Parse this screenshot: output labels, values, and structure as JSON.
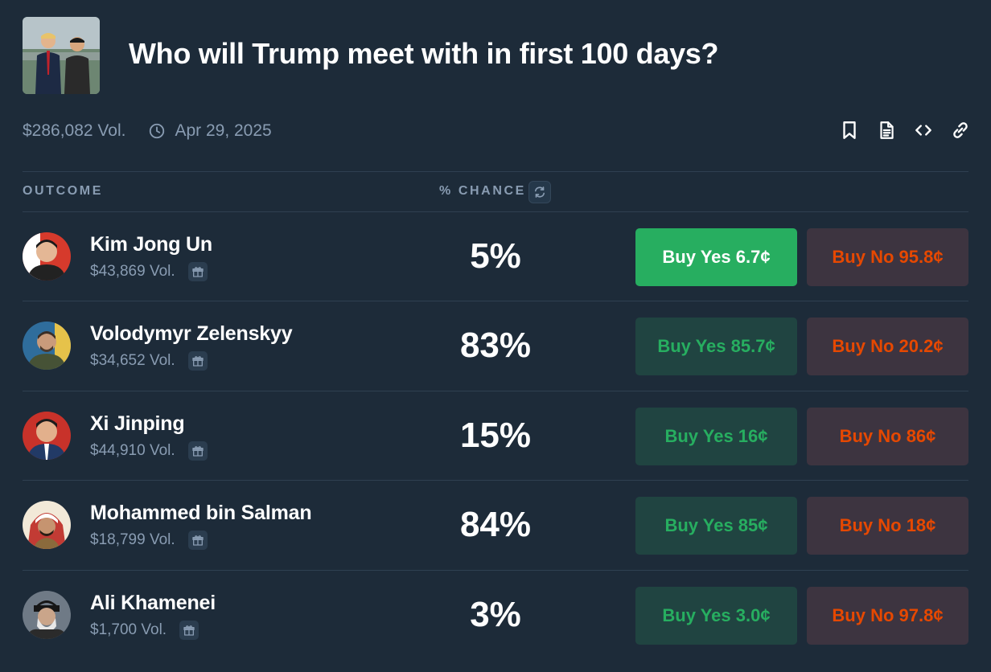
{
  "market": {
    "title": "Who will Trump meet with in first 100 days?",
    "volume": "$286,082 Vol.",
    "end_date": "Apr 29, 2025"
  },
  "actions": [
    "bookmark-icon",
    "document-icon",
    "code-icon",
    "link-icon"
  ],
  "table": {
    "headers": {
      "outcome": "OUTCOME",
      "chance": "% CHANCE"
    },
    "rows": [
      {
        "name": "Kim Jong Un",
        "volume": "$43,869 Vol.",
        "chance": "5%",
        "buy_yes": "Buy Yes 6.7¢",
        "buy_no": "Buy No 95.8¢",
        "yes_selected": true
      },
      {
        "name": "Volodymyr Zelenskyy",
        "volume": "$34,652 Vol.",
        "chance": "83%",
        "buy_yes": "Buy Yes 85.7¢",
        "buy_no": "Buy No 20.2¢",
        "yes_selected": false
      },
      {
        "name": "Xi Jinping",
        "volume": "$44,910 Vol.",
        "chance": "15%",
        "buy_yes": "Buy Yes 16¢",
        "buy_no": "Buy No 86¢",
        "yes_selected": false
      },
      {
        "name": "Mohammed bin Salman",
        "volume": "$18,799 Vol.",
        "chance": "84%",
        "buy_yes": "Buy Yes 85¢",
        "buy_no": "Buy No 18¢",
        "yes_selected": false
      },
      {
        "name": "Ali Khamenei",
        "volume": "$1,700 Vol.",
        "chance": "3%",
        "buy_yes": "Buy Yes 3.0¢",
        "buy_no": "Buy No 97.8¢",
        "yes_selected": false
      }
    ]
  },
  "colors": {
    "background": "#1d2b39",
    "muted_text": "#899cb2",
    "yes_green": "#27ae60",
    "no_orange": "#e64800"
  }
}
